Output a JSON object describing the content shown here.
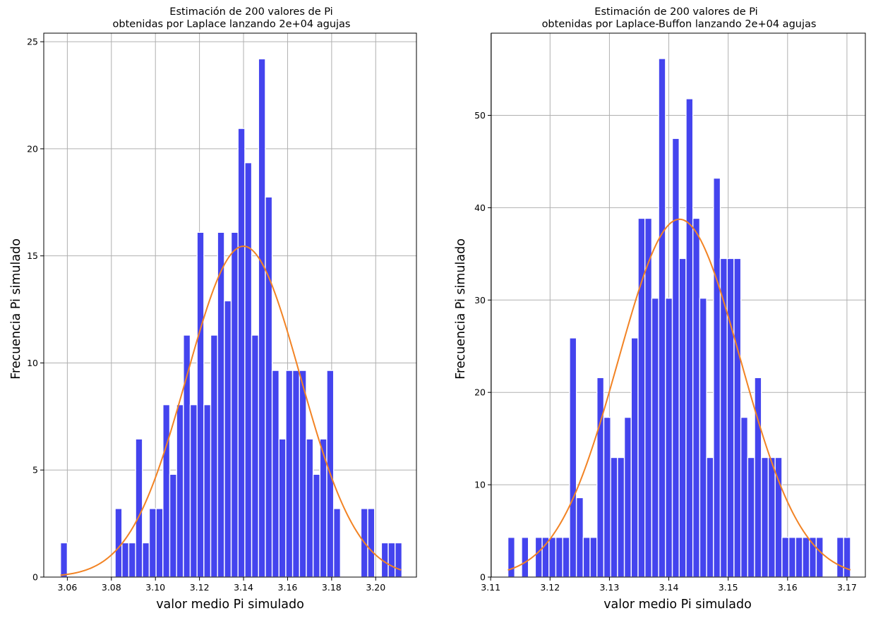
{
  "chart_data": [
    {
      "type": "bar",
      "title_lines": [
        "Estimación de 200 valores de Pi",
        "obtenidas por Laplace lanzando 2e+04 agujas"
      ],
      "xlabel": "valor medio Pi simulado",
      "ylabel": "Frecuencia Pi simulado",
      "xlim": [
        3.0493,
        3.2185
      ],
      "ylim": [
        0,
        25.4
      ],
      "x_ticks": [
        3.06,
        3.08,
        3.1,
        3.12,
        3.14,
        3.16,
        3.18,
        3.2
      ],
      "x_tick_labels": [
        "3.06",
        "3.08",
        "3.10",
        "3.12",
        "3.14",
        "3.16",
        "3.18",
        "3.20"
      ],
      "y_ticks": [
        0,
        5,
        10,
        15,
        20,
        25
      ],
      "y_tick_labels": [
        "0",
        "5",
        "10",
        "15",
        "20",
        "25"
      ],
      "grid": true,
      "bar_color": "#4444ee",
      "curve_color": "#f28324",
      "bins_start": 3.0569,
      "bin_width": 0.0031,
      "values": [
        1.6,
        0,
        0,
        0,
        0,
        0,
        0,
        0,
        3.2,
        1.6,
        1.6,
        6.45,
        1.6,
        3.2,
        3.2,
        8.05,
        4.8,
        8.05,
        11.3,
        8.05,
        16.1,
        8.05,
        11.3,
        16.1,
        12.9,
        16.1,
        20.95,
        19.35,
        11.3,
        24.2,
        17.75,
        9.65,
        6.45,
        9.65,
        9.65,
        9.65,
        6.45,
        4.8,
        6.45,
        9.65,
        3.2,
        0,
        0,
        0,
        3.2,
        3.2,
        0,
        1.6,
        1.6,
        1.6
      ],
      "curve": {
        "mean": 3.14,
        "std": 0.0258,
        "peak": 15.45,
        "x_range": [
          3.0569,
          3.2115
        ]
      }
    },
    {
      "type": "bar",
      "title_lines": [
        "Estimación de 200 valores de Pi",
        "obtenidas por Laplace-Buffon lanzando 2e+04 agujas"
      ],
      "xlabel": "valor medio Pi simulado",
      "ylabel": "Frecuencia Pi simulado",
      "xlim": [
        3.1101,
        3.1731
      ],
      "ylim": [
        0,
        58.9
      ],
      "x_ticks": [
        3.11,
        3.12,
        3.13,
        3.14,
        3.15,
        3.16,
        3.17
      ],
      "x_tick_labels": [
        "3.11",
        "3.12",
        "3.13",
        "3.14",
        "3.15",
        "3.16",
        "3.17"
      ],
      "y_ticks": [
        0,
        10,
        20,
        30,
        40,
        50
      ],
      "y_tick_labels": [
        "0",
        "10",
        "20",
        "30",
        "40",
        "50"
      ],
      "grid": true,
      "bar_color": "#4444ee",
      "curve_color": "#f28324",
      "bins_start": 3.1129,
      "bin_width": 0.001154,
      "values": [
        4.3,
        0,
        4.3,
        0,
        4.3,
        4.3,
        4.3,
        4.3,
        4.3,
        25.9,
        8.6,
        4.3,
        4.3,
        21.6,
        17.3,
        12.95,
        12.95,
        17.3,
        25.9,
        38.85,
        38.85,
        30.2,
        56.15,
        30.2,
        47.5,
        34.5,
        51.8,
        38.85,
        30.2,
        12.95,
        43.2,
        34.5,
        34.5,
        34.5,
        17.3,
        12.95,
        21.6,
        12.95,
        12.95,
        12.95,
        4.3,
        4.3,
        4.3,
        4.3,
        4.3,
        4.3,
        0,
        0,
        4.3,
        4.3
      ],
      "curve": {
        "mean": 3.1418,
        "std": 0.0103,
        "peak": 38.75,
        "x_range": [
          3.1129,
          3.1706
        ]
      }
    }
  ]
}
